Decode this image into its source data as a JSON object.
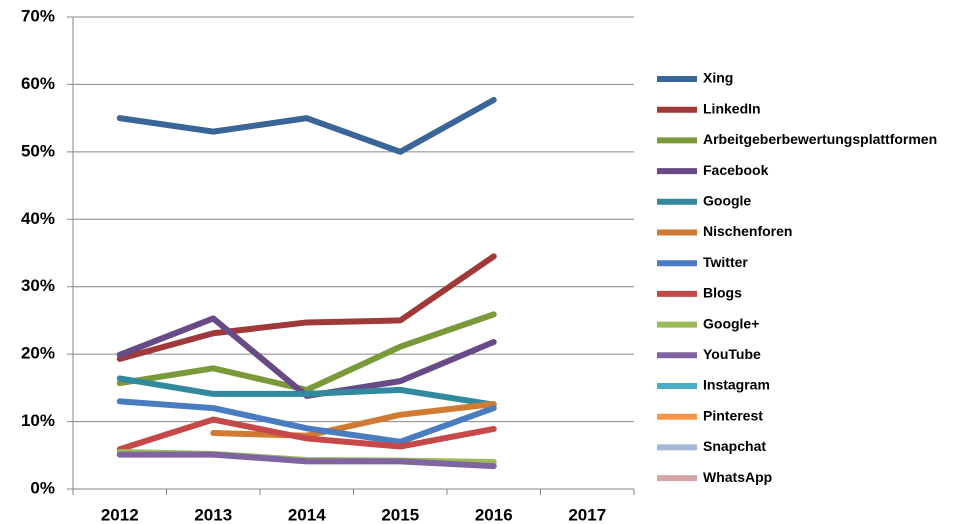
{
  "chart_data": {
    "type": "line",
    "categories": [
      "2012",
      "2013",
      "2014",
      "2015",
      "2016",
      "2017"
    ],
    "ylim": [
      0,
      70
    ],
    "yticks": [
      {
        "value": 0,
        "label": "0%"
      },
      {
        "value": 10,
        "label": "10%"
      },
      {
        "value": 20,
        "label": "20%"
      },
      {
        "value": 30,
        "label": "30%"
      },
      {
        "value": 40,
        "label": "40%"
      },
      {
        "value": 50,
        "label": "50%"
      },
      {
        "value": 60,
        "label": "60%"
      },
      {
        "value": 70,
        "label": "70%"
      }
    ],
    "grid": true,
    "legend": "right",
    "series": [
      {
        "name": "Xing",
        "color": "#3a6598",
        "values": [
          55,
          53,
          55,
          50,
          57.7,
          null
        ]
      },
      {
        "name": "LinkedIn",
        "color": "#a0393a",
        "values": [
          19.3,
          23.1,
          24.7,
          25,
          34.5,
          null
        ]
      },
      {
        "name": "Arbeitgeberbewertungsplattformen",
        "color": "#7a9a3a",
        "values": [
          15.7,
          17.9,
          14.7,
          21.1,
          25.9,
          null
        ]
      },
      {
        "name": "Facebook",
        "color": "#674a86",
        "values": [
          19.9,
          25.3,
          13.8,
          16,
          21.8,
          null
        ]
      },
      {
        "name": "Google",
        "color": "#31899e",
        "values": [
          16.4,
          14.1,
          14.1,
          14.7,
          12.5,
          null
        ]
      },
      {
        "name": "Nischenforen",
        "color": "#d07a32",
        "values": [
          null,
          8.3,
          7.9,
          11,
          12.6,
          null
        ]
      },
      {
        "name": "Twitter",
        "color": "#4a7cc2",
        "values": [
          13,
          12,
          9,
          7,
          12,
          null
        ]
      },
      {
        "name": "Blogs",
        "color": "#c64848",
        "values": [
          5.9,
          10.3,
          7.5,
          6.3,
          8.9,
          null
        ]
      },
      {
        "name": "Google+",
        "color": "#9bbb59",
        "values": [
          5.5,
          5.2,
          4.3,
          4.2,
          4,
          null
        ]
      },
      {
        "name": "YouTube",
        "color": "#8064a2",
        "values": [
          5.1,
          5.1,
          4.1,
          4.1,
          3.4,
          null
        ]
      },
      {
        "name": "Instagram",
        "color": "#4bacc6",
        "values": [
          null,
          null,
          null,
          null,
          null,
          null
        ]
      },
      {
        "name": "Pinterest",
        "color": "#f79646",
        "values": [
          null,
          null,
          null,
          null,
          null,
          null
        ]
      },
      {
        "name": "Snapchat",
        "color": "#a5b6d6",
        "values": [
          null,
          null,
          null,
          null,
          null,
          null
        ]
      },
      {
        "name": "WhatsApp",
        "color": "#d6a5a5",
        "values": [
          null,
          null,
          null,
          null,
          null,
          null
        ]
      }
    ]
  }
}
